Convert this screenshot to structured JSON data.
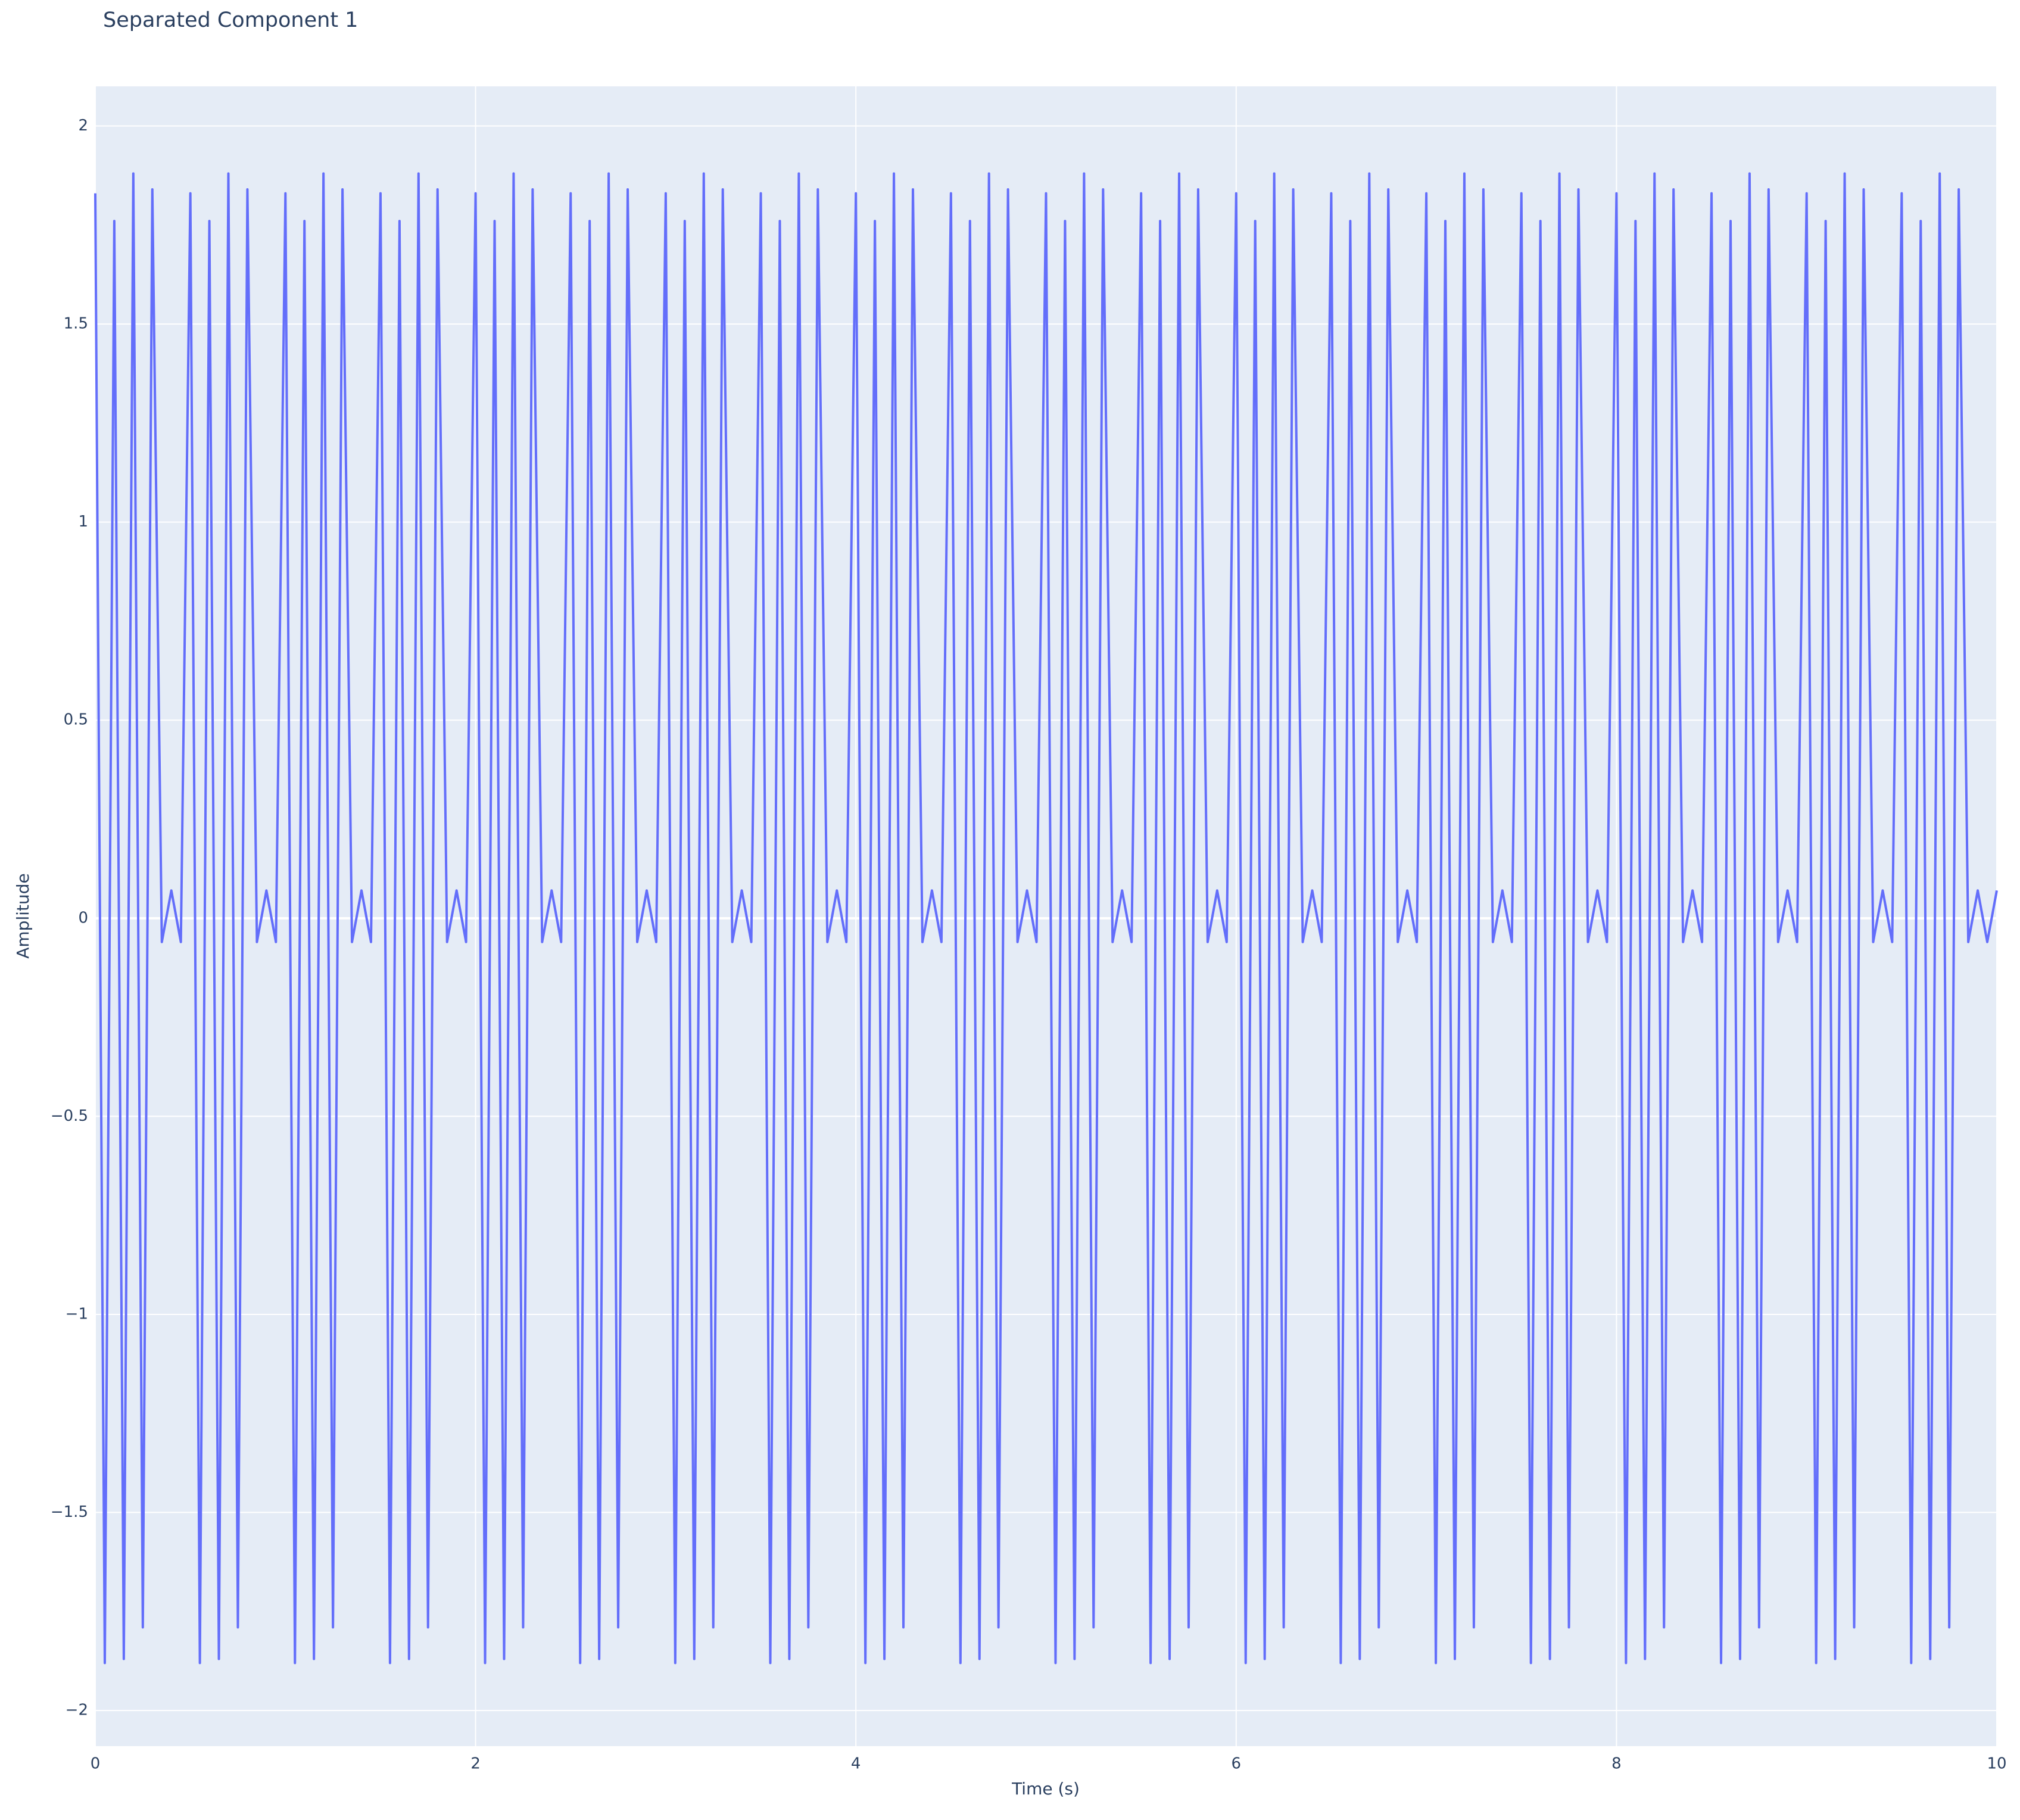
{
  "chart_data": {
    "type": "line",
    "title": "Separated Component 1",
    "x_label": "Time (s)",
    "y_label": "Amplitude",
    "color": "#636efa",
    "grid": true,
    "xlim": [
      0,
      10
    ],
    "ylim": [
      -2.09,
      2.1
    ],
    "xticks": [
      0,
      2,
      4,
      6,
      8,
      10
    ],
    "yticks": [
      {
        "value": -2,
        "label": "−2"
      },
      {
        "value": -1.5,
        "label": "−1.5"
      },
      {
        "value": -1,
        "label": "−1"
      },
      {
        "value": -0.5,
        "label": "−0.5"
      },
      0,
      0.5,
      1,
      1.5,
      2
    ],
    "x": [
      0,
      0.05,
      0.1,
      0.15,
      0.2,
      0.25,
      0.3,
      0.35,
      0.4,
      0.45,
      0.5,
      0.55,
      0.6,
      0.65,
      0.7,
      0.75,
      0.8,
      0.85,
      0.9,
      0.95,
      1,
      1.05,
      1.1,
      1.15,
      1.2,
      1.25,
      1.3,
      1.35,
      1.4,
      1.45,
      1.5,
      1.55,
      1.6,
      1.65,
      1.7,
      1.75,
      1.8,
      1.85,
      1.9,
      1.95,
      2,
      2.05,
      2.1,
      2.15,
      2.2,
      2.25,
      2.3,
      2.35,
      2.4,
      2.45,
      2.5,
      2.55,
      2.6,
      2.65,
      2.7,
      2.75,
      2.8,
      2.85,
      2.9,
      2.95,
      3,
      3.05,
      3.1,
      3.15,
      3.2,
      3.25,
      3.3,
      3.35,
      3.4,
      3.45,
      3.5,
      3.55,
      3.6,
      3.65,
      3.7,
      3.75,
      3.8,
      3.85,
      3.9,
      3.95,
      4,
      4.05,
      4.1,
      4.15,
      4.2,
      4.25,
      4.3,
      4.35,
      4.4,
      4.45,
      4.5,
      4.55,
      4.6,
      4.65,
      4.7,
      4.75,
      4.8,
      4.85,
      4.9,
      4.95,
      5,
      5.05,
      5.1,
      5.15,
      5.2,
      5.25,
      5.3,
      5.35,
      5.4,
      5.45,
      5.5,
      5.55,
      5.6,
      5.65,
      5.7,
      5.75,
      5.8,
      5.85,
      5.9,
      5.95,
      6,
      6.05,
      6.1,
      6.15,
      6.2,
      6.25,
      6.3,
      6.35,
      6.4,
      6.45,
      6.5,
      6.55,
      6.6,
      6.65,
      6.7,
      6.75,
      6.8,
      6.85,
      6.9,
      6.95,
      7,
      7.05,
      7.1,
      7.15,
      7.2,
      7.25,
      7.3,
      7.35,
      7.4,
      7.45,
      7.5,
      7.55,
      7.6,
      7.65,
      7.7,
      7.75,
      7.8,
      7.85,
      7.9,
      7.95,
      8,
      8.05,
      8.1,
      8.15,
      8.2,
      8.25,
      8.3,
      8.35,
      8.4,
      8.45,
      8.5,
      8.55,
      8.6,
      8.65,
      8.7,
      8.75,
      8.8,
      8.85,
      8.9,
      8.95,
      9,
      9.05,
      9.1,
      9.15,
      9.2,
      9.25,
      9.3,
      9.35,
      9.4,
      9.45,
      9.5,
      9.55,
      9.6,
      9.65,
      9.7,
      9.75,
      9.8,
      9.85,
      9.9,
      9.95,
      10
    ],
    "values": [
      1.83,
      -1.88,
      1.76,
      -1.87,
      1.88,
      -1.79,
      1.84,
      -0.06,
      0.07,
      -0.06,
      1.83,
      -1.88,
      1.76,
      -1.87,
      1.88,
      -1.79,
      1.84,
      -0.06,
      0.07,
      -0.06,
      1.83,
      -1.88,
      1.76,
      -1.87,
      1.88,
      -1.79,
      1.84,
      -0.06,
      0.07,
      -0.06,
      1.83,
      -1.88,
      1.76,
      -1.87,
      1.88,
      -1.79,
      1.84,
      -0.06,
      0.07,
      -0.06,
      1.83,
      -1.88,
      1.76,
      -1.87,
      1.88,
      -1.79,
      1.84,
      -0.06,
      0.07,
      -0.06,
      1.83,
      -1.88,
      1.76,
      -1.87,
      1.88,
      -1.79,
      1.84,
      -0.06,
      0.07,
      -0.06,
      1.83,
      -1.88,
      1.76,
      -1.87,
      1.88,
      -1.79,
      1.84,
      -0.06,
      0.07,
      -0.06,
      1.83,
      -1.88,
      1.76,
      -1.87,
      1.88,
      -1.79,
      1.84,
      -0.06,
      0.07,
      -0.06,
      1.83,
      -1.88,
      1.76,
      -1.87,
      1.88,
      -1.79,
      1.84,
      -0.06,
      0.07,
      -0.06,
      1.83,
      -1.88,
      1.76,
      -1.87,
      1.88,
      -1.79,
      1.84,
      -0.06,
      0.07,
      -0.06,
      1.83,
      -1.88,
      1.76,
      -1.87,
      1.88,
      -1.79,
      1.84,
      -0.06,
      0.07,
      -0.06,
      1.83,
      -1.88,
      1.76,
      -1.87,
      1.88,
      -1.79,
      1.84,
      -0.06,
      0.07,
      -0.06,
      1.83,
      -1.88,
      1.76,
      -1.87,
      1.88,
      -1.79,
      1.84,
      -0.06,
      0.07,
      -0.06,
      1.83,
      -1.88,
      1.76,
      -1.87,
      1.88,
      -1.79,
      1.84,
      -0.06,
      0.07,
      -0.06,
      1.83,
      -1.88,
      1.76,
      -1.87,
      1.88,
      -1.79,
      1.84,
      -0.06,
      0.07,
      -0.06,
      1.83,
      -1.88,
      1.76,
      -1.87,
      1.88,
      -1.79,
      1.84,
      -0.06,
      0.07,
      -0.06,
      1.83,
      -1.88,
      1.76,
      -1.87,
      1.88,
      -1.79,
      1.84,
      -0.06,
      0.07,
      -0.06,
      1.83,
      -1.88,
      1.76,
      -1.87,
      1.88,
      -1.79,
      1.84,
      -0.06,
      0.07,
      -0.06,
      1.83,
      -1.88,
      1.76,
      -1.87,
      1.88,
      -1.79,
      1.84,
      -0.06,
      0.07,
      -0.06,
      1.83,
      -1.88,
      1.76,
      -1.87,
      1.88,
      -1.79,
      1.84,
      -0.06,
      0.07,
      -0.06,
      0.07
    ]
  }
}
